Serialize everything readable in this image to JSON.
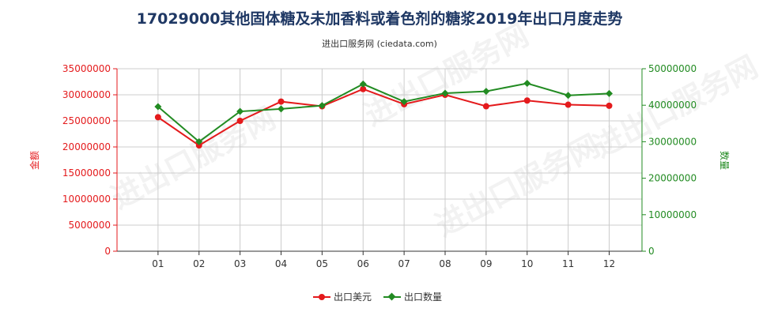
{
  "title": "17029000其他固体糖及未加香料或着色剂的糖浆2019年出口月度走势",
  "subtitle": "进出口服务网 (ciedata.com)",
  "watermark": "进出口服务网",
  "colors": {
    "value": "#e41a1c",
    "quantity": "#228b22",
    "left_axis": "#e41a1c",
    "right_axis": "#228b22",
    "grid": "#cccccc",
    "title": "#1f3864"
  },
  "chart_data": {
    "type": "line",
    "categories": [
      "01",
      "02",
      "03",
      "04",
      "05",
      "06",
      "07",
      "08",
      "09",
      "10",
      "11",
      "12"
    ],
    "series": [
      {
        "name": "出口美元",
        "axis": "left",
        "values": [
          25700000,
          20300000,
          25000000,
          28700000,
          27800000,
          31100000,
          28200000,
          30000000,
          27800000,
          28900000,
          28100000,
          27900000
        ]
      },
      {
        "name": "出口数量",
        "axis": "right",
        "values": [
          39600000,
          30000000,
          38300000,
          39000000,
          39900000,
          45800000,
          41000000,
          43300000,
          43800000,
          46000000,
          42700000,
          43200000
        ]
      }
    ],
    "y_left": {
      "label": "金额",
      "range": [
        0,
        35000000
      ],
      "ticks": [
        "0",
        "5000000",
        "10000000",
        "15000000",
        "20000000",
        "25000000",
        "30000000",
        "35000000"
      ]
    },
    "y_right": {
      "label": "数量",
      "range": [
        0,
        50000000
      ],
      "ticks": [
        "0",
        "10000000",
        "20000000",
        "30000000",
        "40000000",
        "50000000"
      ]
    },
    "grid": true,
    "legend_position": "bottom"
  }
}
